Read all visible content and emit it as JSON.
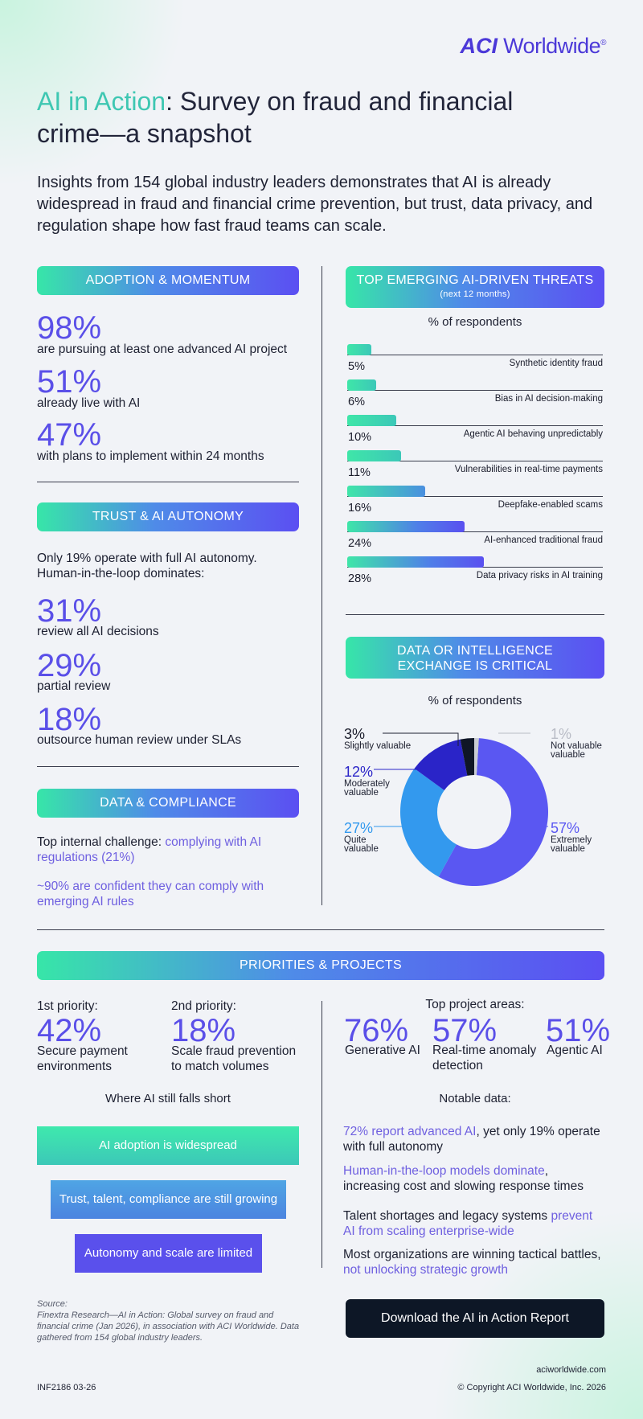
{
  "brand": {
    "logo_bold": "ACI",
    "logo_rest": "Worldwide",
    "registered": "®"
  },
  "title": {
    "accent": "AI in Action",
    "rest": ": Survey on fraud and financial crime—a snapshot"
  },
  "intro": "Insights from 154 global industry leaders demonstrates that AI is already widespread in fraud and financial crime prevention, but trust, data privacy, and regulation shape how fast fraud teams can scale.",
  "adoption": {
    "heading": "ADOPTION & MOMENTUM",
    "stats": [
      {
        "value": "98%",
        "caption": "are pursuing at least one advanced AI project"
      },
      {
        "value": "51%",
        "caption": "already live with AI"
      },
      {
        "value": "47%",
        "caption": "with plans to implement within 24 months"
      }
    ]
  },
  "trust": {
    "heading": "TRUST & AI AUTONOMY",
    "intro": "Only 19% operate with full AI autonomy. Human-in-the-loop dominates:",
    "stats": [
      {
        "value": "31%",
        "caption": "review all AI decisions"
      },
      {
        "value": "29%",
        "caption": "partial review"
      },
      {
        "value": "18%",
        "caption": "outsource human review under SLAs"
      }
    ]
  },
  "compliance": {
    "heading": "DATA & COMPLIANCE",
    "line1_plain": "Top internal challenge: ",
    "line1_accent": "complying with AI regulations (21%)",
    "line2": "~90% are confident they can comply with emerging AI rules"
  },
  "threats": {
    "heading": "TOP EMERGING AI-DRIVEN THREATS",
    "subheading": "(next 12 months)",
    "caption": "% of respondents",
    "items": [
      {
        "label": "Synthetic identity fraud",
        "pct_text": "5%",
        "value": 5
      },
      {
        "label": "Bias in AI decision-making",
        "pct_text": "6%",
        "value": 6
      },
      {
        "label": "Agentic AI behaving unpredictably",
        "pct_text": "10%",
        "value": 10
      },
      {
        "label": "Vulnerabilities in real-time payments",
        "pct_text": "11%",
        "value": 11
      },
      {
        "label": "Deepfake-enabled scams",
        "pct_text": "16%",
        "value": 16
      },
      {
        "label": "AI-enhanced traditional fraud",
        "pct_text": "24%",
        "value": 24
      },
      {
        "label": "Data privacy risks in AI training",
        "pct_text": "28%",
        "value": 28
      }
    ]
  },
  "exchange": {
    "heading_line1": "DATA OR INTELLIGENCE",
    "heading_line2": "EXCHANGE IS CRITICAL",
    "caption": "% of respondents",
    "slices": [
      {
        "name_line1": "Extremely",
        "name_line2": "valuable",
        "pct_text": "57%",
        "value": 57,
        "color": "#5a57f2"
      },
      {
        "name_line1": "Quite",
        "name_line2": "valuable",
        "pct_text": "27%",
        "value": 27,
        "color": "#3399ee"
      },
      {
        "name_line1": "Moderately",
        "name_line2": "valuable",
        "pct_text": "12%",
        "value": 12,
        "color": "#2a24c8"
      },
      {
        "name_line1": "Slightly valuable",
        "name_line2": "",
        "pct_text": "3%",
        "value": 3,
        "color": "#0f1626"
      },
      {
        "name_line1": "Not valuable",
        "name_line2": "valuable",
        "pct_text": "1%",
        "value": 1,
        "color": "#c9ccd3"
      }
    ]
  },
  "chart_data": [
    {
      "type": "bar",
      "title": "TOP EMERGING AI-DRIVEN THREATS (next 12 months)",
      "ylabel": "% of respondents",
      "categories": [
        "Synthetic identity fraud",
        "Bias in AI decision-making",
        "Agentic AI behaving unpredictably",
        "Vulnerabilities in real-time payments",
        "Deepfake-enabled scams",
        "AI-enhanced traditional fraud",
        "Data privacy risks in AI training"
      ],
      "values": [
        5,
        6,
        10,
        11,
        16,
        24,
        28
      ]
    },
    {
      "type": "pie",
      "title": "DATA OR INTELLIGENCE EXCHANGE IS CRITICAL",
      "subtitle": "% of respondents",
      "categories": [
        "Extremely valuable",
        "Quite valuable",
        "Moderately valuable",
        "Slightly valuable",
        "Not valuable"
      ],
      "values": [
        57,
        27,
        12,
        3,
        1
      ]
    }
  ],
  "priorities": {
    "heading": "PRIORITIES & PROJECTS",
    "first": {
      "label": "1st priority:",
      "value": "42%",
      "caption": "Secure payment environments"
    },
    "second": {
      "label": "2nd priority:",
      "value": "18%",
      "caption": "Scale fraud prevention to match volumes"
    },
    "projects_label": "Top project areas:",
    "projects": [
      {
        "value": "76%",
        "caption": "Generative AI"
      },
      {
        "value": "57%",
        "caption": "Real-time anomaly detection"
      },
      {
        "value": "51%",
        "caption": "Agentic AI"
      }
    ]
  },
  "falls_short": {
    "heading": "Where AI still falls short",
    "boxes": [
      "AI adoption is widespread",
      "Trust, talent, compliance are still growing",
      "Autonomy and scale are limited"
    ]
  },
  "notable": {
    "heading": "Notable data:",
    "p1_accent": "72% report advanced AI",
    "p1_plain": ", yet only 19% operate with full autonomy",
    "p2_accent": "Human-in-the-loop models dominate",
    "p2_plain": ", increasing cost and slowing response times",
    "p3_plain": "Talent shortages and legacy systems ",
    "p3_accent": "prevent AI from scaling enterprise-wide",
    "p4_plain": "Most organizations are winning tactical battles, ",
    "p4_accent": "not unlocking strategic growth"
  },
  "source": {
    "label": "Source:",
    "text": "Finextra Research—AI in Action: Global survey on fraud and financial crime (Jan 2026), in association with ACI Worldwide. Data gathered from 154 global industry leaders."
  },
  "download_label": "Download the AI in Action Report",
  "footer": {
    "website": "aciworldwide.com",
    "code": "INF2186 03-26",
    "copyright": "© Copyright ACI Worldwide, Inc. 2026"
  },
  "colors": {
    "accent_purple": "#5a4fe8",
    "accent_teal": "#3ec7b2",
    "dark": "#0d1726"
  }
}
